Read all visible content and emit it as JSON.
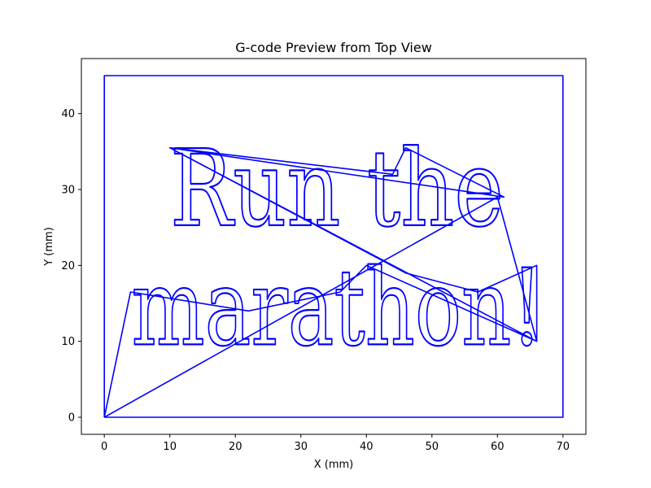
{
  "chart_data": {
    "type": "line",
    "title": "G-code Preview from Top View",
    "xlabel": "X (mm)",
    "ylabel": "Y (mm)",
    "xlim": [
      -3.5,
      73.5
    ],
    "ylim": [
      -2.25,
      47.25
    ],
    "xticks": [
      0,
      10,
      20,
      30,
      40,
      50,
      60,
      70
    ],
    "yticks": [
      0,
      10,
      20,
      30,
      40
    ],
    "grid": false,
    "series_color": "#0000ff",
    "border": {
      "x": [
        0,
        70,
        70,
        0,
        0
      ],
      "y": [
        0,
        0,
        45,
        45,
        0
      ]
    },
    "travel_moves": {
      "x": [
        0,
        4,
        22,
        36,
        40,
        66,
        66,
        57,
        46,
        10,
        44,
        46,
        61,
        10,
        66,
        60,
        0
      ],
      "y": [
        0,
        16.5,
        14,
        16.5,
        20,
        10,
        20,
        16.5,
        19,
        35.5,
        32,
        35.5,
        29,
        35.5,
        10,
        29,
        0
      ]
    },
    "text_lines": [
      "Run the",
      "marathon!"
    ]
  }
}
